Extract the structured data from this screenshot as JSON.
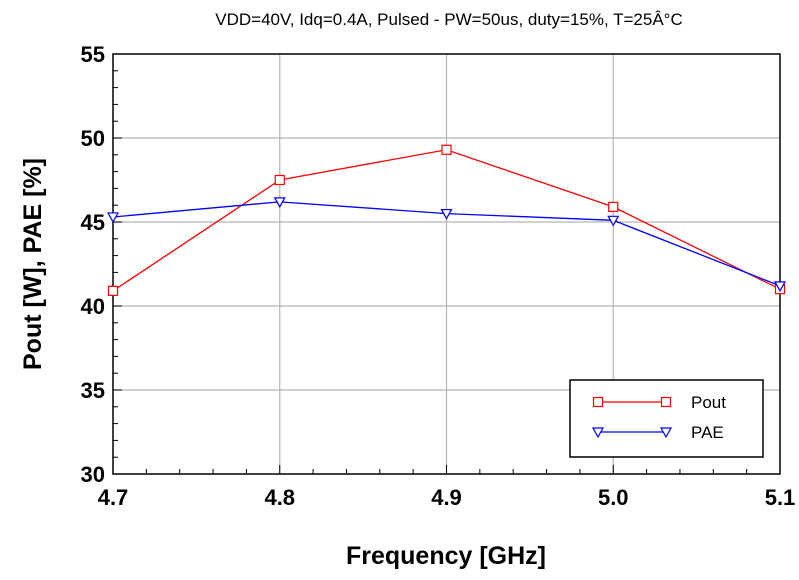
{
  "chart_data": {
    "type": "line",
    "title": "VDD=40V, Idq=0.4A, Pulsed - PW=50us, duty=15%, T=25Â°C",
    "xlabel": "Frequency [GHz]",
    "ylabel": "Pout [W], PAE [%]",
    "x": [
      4.7,
      4.8,
      4.9,
      5.0,
      5.1
    ],
    "xticks": [
      "4.7",
      "4.8",
      "4.9",
      "5.0",
      "5.1"
    ],
    "xlim": [
      4.7,
      5.1
    ],
    "yticks": [
      "30",
      "35",
      "40",
      "45",
      "50",
      "55"
    ],
    "ylim": [
      30,
      55
    ],
    "grid": true,
    "legend_position": "bottom-right",
    "series": [
      {
        "name": "Pout",
        "color": "#ff0000",
        "marker": "square",
        "values": [
          40.9,
          47.5,
          49.3,
          45.9,
          41.0
        ]
      },
      {
        "name": "PAE",
        "color": "#0000ff",
        "marker": "triangle-down",
        "values": [
          45.3,
          46.2,
          45.5,
          45.1,
          41.2
        ]
      }
    ]
  }
}
